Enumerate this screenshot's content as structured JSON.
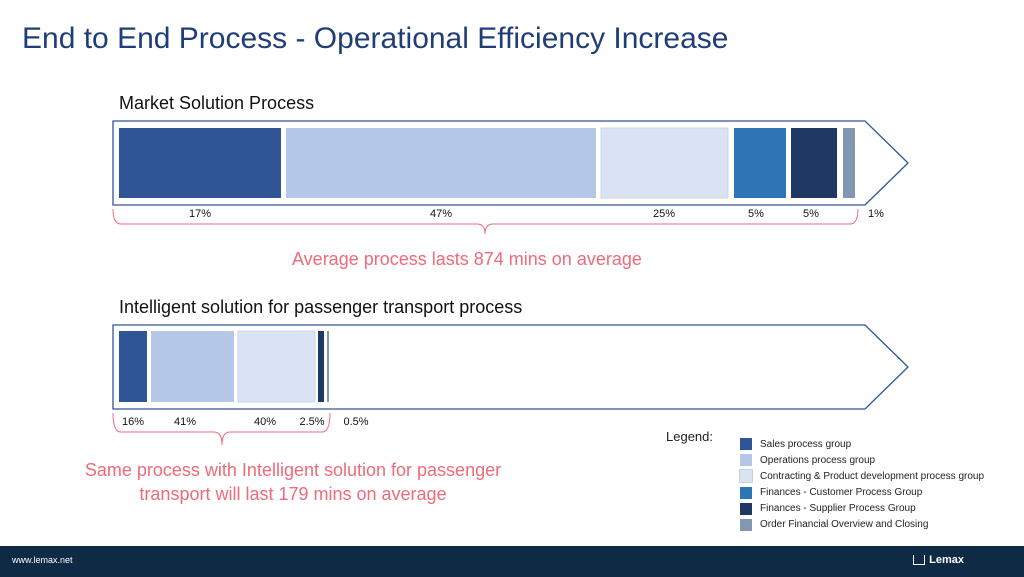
{
  "page": {
    "title": "End to End Process - Operational Efficiency Increase"
  },
  "colors": {
    "sales": "#2f5597",
    "operations": "#b4c7e7",
    "contracting": "#dae3f3",
    "fin_customer": "#2e75b6",
    "fin_supplier": "#203864",
    "order_closing": "#8497b0",
    "summary_text": "#f06a7a",
    "arrow_outline": "#2f5597"
  },
  "market": {
    "title": "Market Solution Process",
    "segments": [
      {
        "label": "17%",
        "group": "sales"
      },
      {
        "label": "47%",
        "group": "operations"
      },
      {
        "label": "25%",
        "group": "contracting"
      },
      {
        "label": "5%",
        "group": "fin_customer"
      },
      {
        "label": "5%",
        "group": "fin_supplier"
      },
      {
        "label": "1%",
        "group": "order_closing"
      }
    ],
    "summary": "Average process lasts 874 mins on average"
  },
  "intelligent": {
    "title": "Intelligent solution for passenger transport process",
    "segments": [
      {
        "label": "16%",
        "group": "sales"
      },
      {
        "label": "41%",
        "group": "operations"
      },
      {
        "label": "40%",
        "group": "contracting"
      },
      {
        "label": "2.5%",
        "group": "fin_supplier"
      },
      {
        "label": "0.5%",
        "group": "order_closing"
      }
    ],
    "summary_line1": "Same process with Intelligent solution for passenger",
    "summary_line2": "transport will last 179 mins on average"
  },
  "legend": {
    "label": "Legend:",
    "items": [
      {
        "group": "sales",
        "text": "Sales process group"
      },
      {
        "group": "operations",
        "text": "Operations process group"
      },
      {
        "group": "contracting",
        "text": "Contracting & Product development process group"
      },
      {
        "group": "fin_customer",
        "text": "Finances - Customer Process Group"
      },
      {
        "group": "fin_supplier",
        "text": "Finances - Supplier Process Group"
      },
      {
        "group": "order_closing",
        "text": "Order Financial Overview and Closing"
      }
    ]
  },
  "footer": {
    "url": "www.lemax.net",
    "logo": "Lemax"
  }
}
